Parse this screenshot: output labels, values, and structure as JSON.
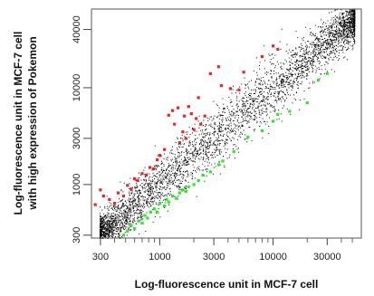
{
  "chart_data": {
    "type": "scatter",
    "title": "",
    "xlabel": "Log-fluorescence unit in MCF-7 cell",
    "ylabel_line1": "Log-fluorescence unit in MCF-7 cell",
    "ylabel_line2": "with high expression of Pokemon",
    "xscale": "log",
    "yscale": "log",
    "xlim": [
      250,
      60000
    ],
    "ylim": [
      280,
      65000
    ],
    "xticks": [
      300,
      1000,
      3000,
      10000,
      30000
    ],
    "xtick_labels": [
      "300",
      "1000",
      "3000",
      "10000",
      "30000"
    ],
    "yticks": [
      300,
      1000,
      3000,
      10000,
      40000
    ],
    "ytick_labels": [
      "300",
      "1000",
      "3000",
      "10000",
      "40000"
    ],
    "grid": false,
    "colors": {
      "background_points": "#000000",
      "up": "#e8262a",
      "down": "#2ee82a",
      "axis": "#444444"
    },
    "series": [
      {
        "color": "#e8262a",
        "points": [
          [
            270,
            620
          ],
          [
            300,
            880
          ],
          [
            320,
            760
          ],
          [
            360,
            700
          ],
          [
            400,
            640
          ],
          [
            430,
            820
          ],
          [
            480,
            760
          ],
          [
            520,
            980
          ],
          [
            560,
            900
          ],
          [
            600,
            1150
          ],
          [
            640,
            1100
          ],
          [
            700,
            1300
          ],
          [
            760,
            1250
          ],
          [
            820,
            1500
          ],
          [
            880,
            1450
          ],
          [
            950,
            1800
          ],
          [
            1000,
            2000
          ],
          [
            1100,
            2300
          ],
          [
            1200,
            5200
          ],
          [
            1300,
            5800
          ],
          [
            1350,
            4200
          ],
          [
            1450,
            6200
          ],
          [
            1500,
            2700
          ],
          [
            1600,
            3500
          ],
          [
            1650,
            5100
          ],
          [
            1700,
            3000
          ],
          [
            1800,
            6400
          ],
          [
            1900,
            5400
          ],
          [
            2000,
            3700
          ],
          [
            2100,
            4800
          ],
          [
            2200,
            7900
          ],
          [
            2300,
            4200
          ],
          [
            2500,
            5100
          ],
          [
            2800,
            14000
          ],
          [
            3300,
            16500
          ],
          [
            3500,
            10500
          ],
          [
            4200,
            9800
          ],
          [
            5000,
            9500
          ],
          [
            5500,
            14500
          ],
          [
            8000,
            21000
          ],
          [
            10000,
            27000
          ],
          [
            11000,
            25000
          ]
        ]
      },
      {
        "color": "#2ee82a",
        "points": [
          [
            480,
            300
          ],
          [
            520,
            330
          ],
          [
            560,
            380
          ],
          [
            600,
            350
          ],
          [
            650,
            420
          ],
          [
            700,
            400
          ],
          [
            740,
            480
          ],
          [
            780,
            450
          ],
          [
            830,
            520
          ],
          [
            900,
            560
          ],
          [
            950,
            520
          ],
          [
            1000,
            640
          ],
          [
            1100,
            600
          ],
          [
            1150,
            700
          ],
          [
            1200,
            660
          ],
          [
            1300,
            760
          ],
          [
            1400,
            720
          ],
          [
            1500,
            820
          ],
          [
            1600,
            880
          ],
          [
            1700,
            850
          ],
          [
            1800,
            950
          ],
          [
            2000,
            1000
          ],
          [
            2200,
            1100
          ],
          [
            2400,
            1250
          ],
          [
            2800,
            1350
          ],
          [
            3300,
            1600
          ],
          [
            3600,
            1750
          ],
          [
            4500,
            2200
          ],
          [
            6000,
            3100
          ],
          [
            8000,
            3600
          ],
          [
            10000,
            4500
          ],
          [
            11000,
            5300
          ],
          [
            14000,
            5700
          ],
          [
            20000,
            7000
          ],
          [
            25000,
            12000
          ],
          [
            30000,
            14000
          ]
        ]
      }
    ],
    "background_cloud": {
      "x_range": [
        280,
        55000
      ],
      "y_range": [
        300,
        60000
      ],
      "correlation": "y approximately equal to x"
    }
  }
}
